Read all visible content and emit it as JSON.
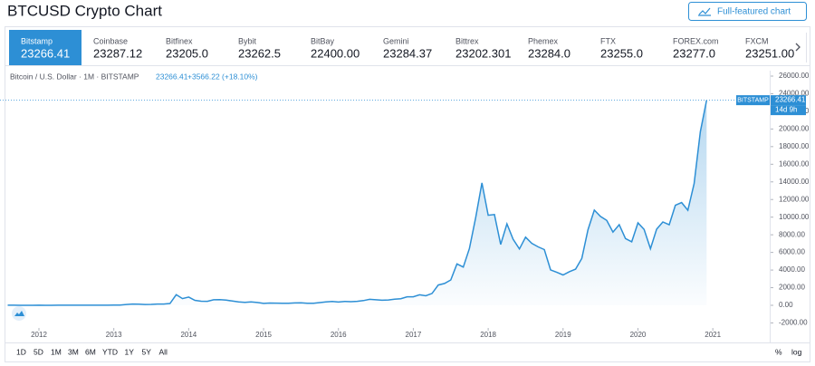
{
  "header": {
    "title": "BTCUSD Crypto Chart",
    "button": "Full-featured chart"
  },
  "tabs": [
    {
      "name": "Bitstamp",
      "price": "23266.41"
    },
    {
      "name": "Coinbase",
      "price": "23287.12"
    },
    {
      "name": "Bitfinex",
      "price": "23205.0"
    },
    {
      "name": "Bybit",
      "price": "23262.5"
    },
    {
      "name": "BitBay",
      "price": "22400.00"
    },
    {
      "name": "Gemini",
      "price": "23284.37"
    },
    {
      "name": "Bittrex",
      "price": "23202.301"
    },
    {
      "name": "Phemex",
      "price": "23284.0"
    },
    {
      "name": "FTX",
      "price": "23255.0"
    },
    {
      "name": "FOREX.com",
      "price": "23277.0"
    },
    {
      "name": "FXCM",
      "price": "23251.00"
    }
  ],
  "chart_data": {
    "type": "area",
    "legend_symbol": "Bitcoin / U.S. Dollar · 1M · BITSTAMP",
    "legend_change": "+3566.22 (+18.10%)",
    "price_tag": {
      "name": "BITSTAMP",
      "countdown": "14d 9h"
    },
    "xlim": [
      2011.48,
      2021.76
    ],
    "xticks": [
      2012,
      2013,
      2014,
      2015,
      2016,
      2017,
      2018,
      2019,
      2020,
      2021
    ],
    "ylim": [
      -2800,
      26600
    ],
    "yticks": [
      {
        "value": -2000,
        "label": "-2000.00"
      },
      {
        "value": 0,
        "label": "0.00"
      },
      {
        "value": 2000,
        "label": "2000.00"
      },
      {
        "value": 4000,
        "label": "4000.00"
      },
      {
        "value": 6000,
        "label": "6000.00"
      },
      {
        "value": 8000,
        "label": "8000.00"
      },
      {
        "value": 10000,
        "label": "10000.00"
      },
      {
        "value": 12000,
        "label": "12000.00"
      },
      {
        "value": 14000,
        "label": "14000.00"
      },
      {
        "value": 16000,
        "label": "16000.00"
      },
      {
        "value": 18000,
        "label": "18000.00"
      },
      {
        "value": 20000,
        "label": "20000.00"
      },
      {
        "value": 22000,
        "label": "22000.00"
      },
      {
        "value": 24000,
        "label": "24000.00"
      },
      {
        "value": 26000,
        "label": "26000.00"
      }
    ],
    "x": [
      2011.583,
      2011.667,
      2011.75,
      2011.833,
      2011.917,
      2012.0,
      2012.083,
      2012.167,
      2012.25,
      2012.333,
      2012.417,
      2012.5,
      2012.583,
      2012.667,
      2012.75,
      2012.833,
      2012.917,
      2013.0,
      2013.083,
      2013.167,
      2013.25,
      2013.333,
      2013.417,
      2013.5,
      2013.583,
      2013.667,
      2013.75,
      2013.833,
      2013.917,
      2014.0,
      2014.083,
      2014.167,
      2014.25,
      2014.333,
      2014.417,
      2014.5,
      2014.583,
      2014.667,
      2014.75,
      2014.833,
      2014.917,
      2015.0,
      2015.083,
      2015.167,
      2015.25,
      2015.333,
      2015.417,
      2015.5,
      2015.583,
      2015.667,
      2015.75,
      2015.833,
      2015.917,
      2016.0,
      2016.083,
      2016.167,
      2016.25,
      2016.333,
      2016.417,
      2016.5,
      2016.583,
      2016.667,
      2016.75,
      2016.833,
      2016.917,
      2017.0,
      2017.083,
      2017.167,
      2017.25,
      2017.333,
      2017.417,
      2017.5,
      2017.583,
      2017.667,
      2017.75,
      2017.833,
      2017.917,
      2018.0,
      2018.083,
      2018.167,
      2018.25,
      2018.333,
      2018.417,
      2018.5,
      2018.583,
      2018.667,
      2018.75,
      2018.833,
      2018.917,
      2019.0,
      2019.083,
      2019.167,
      2019.25,
      2019.333,
      2019.417,
      2019.5,
      2019.583,
      2019.667,
      2019.75,
      2019.833,
      2019.917,
      2020.0,
      2020.083,
      2020.167,
      2020.25,
      2020.333,
      2020.417,
      2020.5,
      2020.583,
      2020.667,
      2020.75,
      2020.833,
      2020.917
    ],
    "series": [
      {
        "name": "Bitstamp",
        "color": "#2d8fd5",
        "values": [
          8,
          5,
          3,
          3,
          4.7,
          5.5,
          4.9,
          4.9,
          5,
          5.2,
          6.7,
          9.4,
          10.2,
          12.4,
          11.2,
          12.6,
          13.5,
          20,
          33,
          93,
          139,
          129,
          97,
          106,
          141,
          141,
          204,
          1205,
          757,
          937,
          565,
          458,
          448,
          627,
          640,
          585,
          478,
          386,
          338,
          378,
          318,
          217,
          254,
          244,
          236,
          230,
          263,
          284,
          230,
          236,
          313,
          378,
          430,
          369,
          437,
          416,
          448,
          531,
          673,
          624,
          575,
          609,
          700,
          745,
          966,
          970,
          1190,
          1080,
          1348,
          2300,
          2480,
          2875,
          4700,
          4340,
          6450,
          9950,
          13880,
          10220,
          10300,
          6900,
          9240,
          7500,
          6390,
          7730,
          7030,
          6630,
          6320,
          4020,
          3740,
          3440,
          3810,
          4100,
          5320,
          8570,
          10800,
          10080,
          9630,
          8300,
          9150,
          7570,
          7200,
          9350,
          8600,
          6420,
          8630,
          9450,
          9140,
          11350,
          11650,
          10780,
          13800,
          19700,
          23266.41
        ]
      }
    ]
  },
  "toolbar": {
    "ranges": [
      "1D",
      "5D",
      "1M",
      "3M",
      "6M",
      "YTD",
      "1Y",
      "5Y",
      "All"
    ],
    "options": [
      "%",
      "log"
    ]
  }
}
